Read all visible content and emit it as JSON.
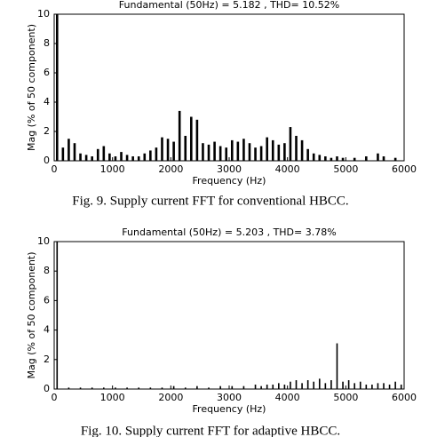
{
  "chart_data": [
    {
      "type": "bar",
      "title": "Fundamental (50Hz) = 5.182 , THD= 10.52%",
      "xlabel": "Frequency (Hz)",
      "ylabel": "Mag (% of 50 component)",
      "caption": "Fig. 9. Supply current FFT for conventional HBCC.",
      "color": "#000000",
      "x": [
        50,
        150,
        250,
        350,
        450,
        550,
        650,
        750,
        850,
        950,
        1050,
        1150,
        1250,
        1350,
        1450,
        1550,
        1650,
        1750,
        1850,
        1950,
        2050,
        2150,
        2250,
        2350,
        2450,
        2550,
        2650,
        2750,
        2850,
        2950,
        3050,
        3150,
        3250,
        3350,
        3450,
        3550,
        3650,
        3750,
        3850,
        3950,
        4050,
        4150,
        4250,
        4350,
        4450,
        4550,
        4650,
        4750,
        4850,
        4950,
        5150,
        5350,
        5550,
        5650,
        5850
      ],
      "values": [
        10,
        0.9,
        1.5,
        1.2,
        0.5,
        0.4,
        0.3,
        0.8,
        1.0,
        0.5,
        0.3,
        0.6,
        0.4,
        0.3,
        0.3,
        0.5,
        0.7,
        0.9,
        1.6,
        1.5,
        1.3,
        3.4,
        1.7,
        3.0,
        2.8,
        1.2,
        1.1,
        1.3,
        1.0,
        0.9,
        1.4,
        1.3,
        1.5,
        1.2,
        0.9,
        1.0,
        1.6,
        1.4,
        1.1,
        1.2,
        2.3,
        1.7,
        1.4,
        0.8,
        0.5,
        0.4,
        0.3,
        0.2,
        0.3,
        0.2,
        0.2,
        0.3,
        0.5,
        0.3,
        0.2
      ],
      "xlim": [
        0,
        6000
      ],
      "ylim": [
        0,
        10
      ],
      "xticks": [
        0,
        1000,
        2000,
        3000,
        4000,
        5000,
        6000
      ],
      "yticks": [
        0,
        2,
        4,
        6,
        8,
        10
      ]
    },
    {
      "type": "bar",
      "title": "Fundamental (50Hz) = 5.203 , THD= 3.78%",
      "xlabel": "Frequency (Hz)",
      "ylabel": "Mag (% of 50 component)",
      "caption": "Fig. 10. Supply current FFT for adaptive HBCC.",
      "color": "#000000",
      "x": [
        50,
        250,
        450,
        650,
        850,
        1050,
        1250,
        1450,
        1650,
        1850,
        2050,
        2250,
        2450,
        2650,
        2850,
        3050,
        3250,
        3450,
        3550,
        3650,
        3750,
        3850,
        3950,
        4050,
        4150,
        4250,
        4350,
        4450,
        4550,
        4650,
        4750,
        4850,
        4950,
        5050,
        5150,
        5250,
        5350,
        5450,
        5550,
        5650,
        5750,
        5850,
        5950
      ],
      "values": [
        10,
        0.1,
        0.1,
        0.1,
        0.1,
        0.1,
        0.1,
        0.1,
        0.1,
        0.1,
        0.2,
        0.1,
        0.2,
        0.1,
        0.2,
        0.2,
        0.2,
        0.3,
        0.2,
        0.3,
        0.3,
        0.4,
        0.3,
        0.5,
        0.6,
        0.4,
        0.6,
        0.5,
        0.7,
        0.4,
        0.6,
        3.1,
        0.5,
        0.6,
        0.4,
        0.5,
        0.3,
        0.3,
        0.4,
        0.4,
        0.3,
        0.5,
        0.3
      ],
      "xlim": [
        0,
        6000
      ],
      "ylim": [
        0,
        10
      ],
      "xticks": [
        0,
        1000,
        2000,
        3000,
        4000,
        5000,
        6000
      ],
      "yticks": [
        0,
        2,
        4,
        6,
        8,
        10
      ]
    }
  ]
}
